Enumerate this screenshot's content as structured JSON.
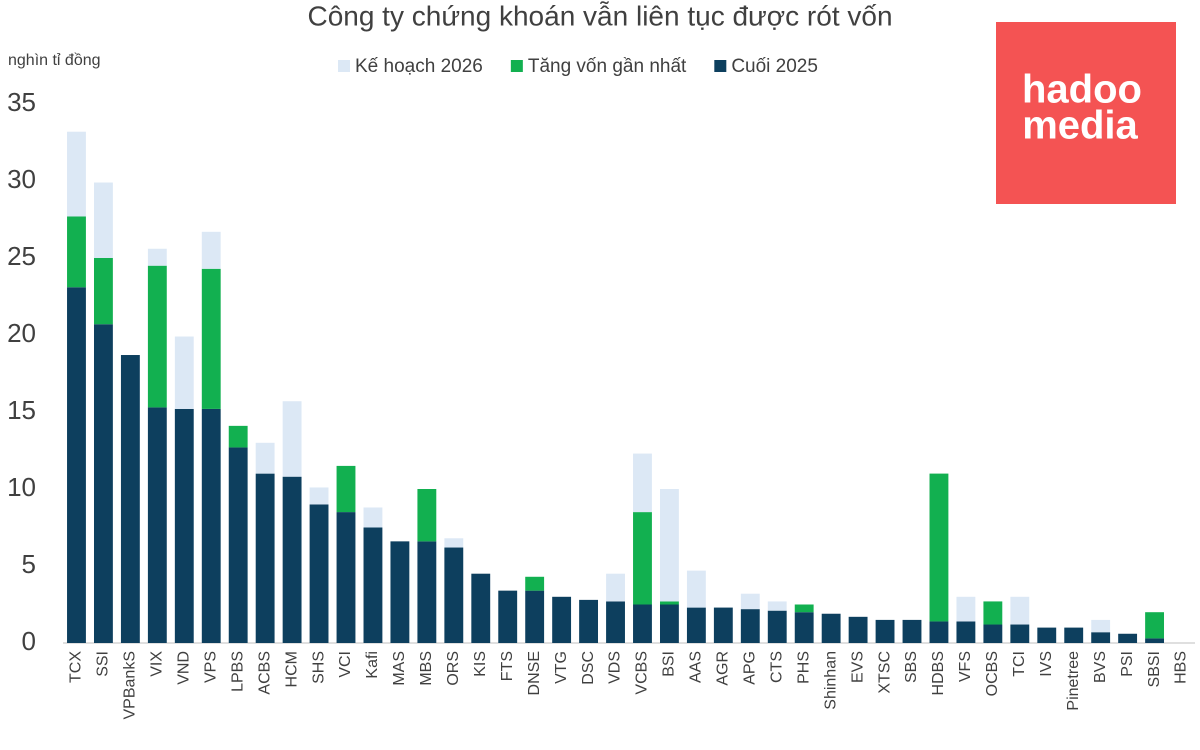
{
  "chart_data": {
    "type": "stacked-bar",
    "title": "Công ty chứng khoán vẫn liên tục được rót vốn",
    "ylabel": "nghìn tỉ đồng",
    "categories": [
      "TCX",
      "SSI",
      "VPBankS",
      "VIX",
      "VND",
      "VPS",
      "LPBS",
      "ACBS",
      "HCM",
      "SHS",
      "VCI",
      "Kafi",
      "MAS",
      "MBS",
      "ORS",
      "KIS",
      "FTS",
      "DNSE",
      "VTG",
      "DSC",
      "VDS",
      "VCBS",
      "BSI",
      "AAS",
      "AGR",
      "APG",
      "CTS",
      "PHS",
      "Shinhan",
      "EVS",
      "XTSC",
      "SBS",
      "HDBS",
      "VFS",
      "OCBS",
      "TCI",
      "IVS",
      "Pinetree",
      "BVS",
      "PSI",
      "SBSI",
      "HBS"
    ],
    "series": [
      {
        "name": "Kế hoạch 2026",
        "color": "#dce8f5",
        "values": [
          5.5,
          4.9,
          0,
          1.1,
          4.7,
          2.4,
          0,
          2.0,
          4.9,
          1.1,
          0,
          1.3,
          0,
          0,
          0.6,
          0,
          0,
          0,
          0,
          0,
          1.8,
          3.8,
          7.3,
          2.4,
          0,
          1.0,
          0.6,
          0,
          0,
          0,
          0,
          0,
          0,
          1.6,
          0,
          1.8,
          0,
          0,
          0.8,
          0,
          0,
          0
        ]
      },
      {
        "name": "Tăng vốn gần nhất",
        "color": "#12b050",
        "values": [
          4.6,
          4.3,
          0,
          9.2,
          0,
          9.1,
          1.4,
          0,
          0,
          0,
          3.0,
          0,
          0,
          3.4,
          0,
          0,
          0,
          0.9,
          0,
          0,
          0,
          6.0,
          0.2,
          0,
          0,
          0,
          0,
          0.5,
          0,
          0,
          0,
          0,
          9.6,
          0,
          1.5,
          0,
          0,
          0,
          0,
          0,
          1.7,
          0
        ]
      },
      {
        "name": "Cuối 2025",
        "color": "#0d3f5e",
        "values": [
          23.1,
          20.7,
          18.7,
          15.3,
          15.2,
          15.2,
          12.7,
          11.0,
          10.8,
          9.0,
          8.5,
          7.5,
          6.6,
          6.6,
          6.2,
          4.5,
          3.4,
          3.4,
          3.0,
          2.8,
          2.7,
          2.5,
          2.5,
          2.3,
          2.3,
          2.2,
          2.1,
          2.0,
          1.9,
          1.7,
          1.5,
          1.5,
          1.4,
          1.4,
          1.2,
          1.2,
          1.0,
          1.0,
          0.7,
          0.6,
          0.3,
          0
        ]
      }
    ],
    "ylim": [
      0,
      35
    ],
    "yticks": [
      0,
      5,
      10,
      15,
      20,
      25,
      30,
      35
    ],
    "grid": false
  },
  "logo_text": [
    "hadoo",
    "media"
  ]
}
